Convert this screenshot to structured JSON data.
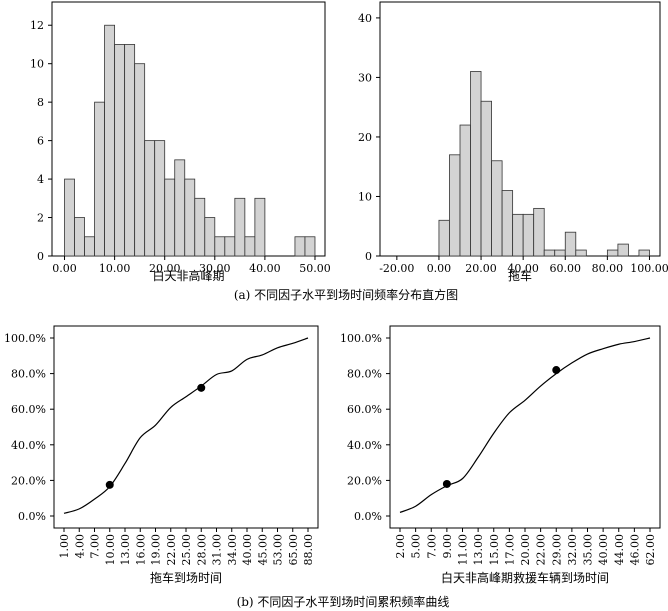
{
  "captions": {
    "a": "(a) 不同因子水平到场时间频率分布直方图",
    "b": "(b) 不同因子水平到场时间累积频率曲线"
  },
  "chart_data": [
    {
      "id": "hist-daytime",
      "type": "bar",
      "xlabel": "白天非高峰期",
      "ylabel": "",
      "title": "",
      "xlim": [
        -2.5,
        52
      ],
      "ylim": [
        0,
        13
      ],
      "xticks": [
        0,
        10,
        20,
        30,
        40,
        50
      ],
      "xtick_labels": [
        "0.00",
        "10.00",
        "20.00",
        "30.00",
        "40.00",
        "50.00"
      ],
      "yticks": [
        0,
        2,
        4,
        6,
        8,
        10,
        12
      ],
      "ytick_labels": [
        "0",
        "2",
        "4",
        "6",
        "8",
        "10",
        "12"
      ],
      "bin_width": 2,
      "bin_starts": [
        0,
        2,
        4,
        6,
        8,
        10,
        12,
        14,
        16,
        18,
        20,
        22,
        24,
        26,
        28,
        30,
        32,
        34,
        36,
        38,
        40,
        42,
        44,
        46,
        48
      ],
      "values": [
        4,
        2,
        1,
        8,
        12,
        11,
        11,
        10,
        6,
        6,
        4,
        5,
        4,
        3,
        2,
        1,
        1,
        3,
        1,
        3,
        0,
        0,
        0,
        1,
        1
      ],
      "grid": false
    },
    {
      "id": "hist-tow",
      "type": "bar",
      "xlabel": "拖车",
      "ylabel": "",
      "title": "",
      "xlim": [
        -28,
        105
      ],
      "ylim": [
        0,
        42
      ],
      "xticks": [
        -20,
        0,
        20,
        40,
        60,
        80,
        100
      ],
      "xtick_labels": [
        "-20.00",
        "0.00",
        "20.00",
        "40.00",
        "60.00",
        "80.00",
        "100.00"
      ],
      "yticks": [
        0,
        10,
        20,
        30,
        40
      ],
      "ytick_labels": [
        "0",
        "10",
        "20",
        "30",
        "40"
      ],
      "bin_width": 5,
      "bin_starts": [
        0,
        5,
        10,
        15,
        20,
        25,
        30,
        35,
        40,
        45,
        50,
        55,
        60,
        65,
        70,
        75,
        80,
        85,
        90,
        95
      ],
      "values": [
        6,
        17,
        22,
        31,
        26,
        16,
        11,
        7,
        7,
        8,
        1,
        1,
        4,
        1,
        0,
        0,
        1,
        2,
        0,
        1
      ],
      "grid": false
    },
    {
      "id": "cdf-tow",
      "type": "line",
      "xlabel": "拖车到场时间",
      "ylabel": "",
      "title": "",
      "x_categories": [
        "1.00",
        "4.00",
        "7.00",
        "10.00",
        "13.00",
        "16.00",
        "19.00",
        "22.00",
        "25.00",
        "28.00",
        "31.00",
        "34.00",
        "40.00",
        "45.00",
        "53.00",
        "65.00",
        "88.00"
      ],
      "y": [
        1.5,
        4.0,
        9.5,
        16.5,
        29.5,
        44.0,
        51.0,
        61.0,
        67.0,
        73.0,
        79.5,
        81.5,
        88.0,
        90.5,
        94.5,
        97.0,
        100.0
      ],
      "markers": [
        {
          "index": 3,
          "y": 17.5
        },
        {
          "index": 9,
          "y": 72.0
        }
      ],
      "ylim": [
        0,
        100
      ],
      "ytick_labels": [
        "0.0%",
        "20.0%",
        "40.0%",
        "60.0%",
        "80.0%",
        "100.0%"
      ],
      "grid": false
    },
    {
      "id": "cdf-rescue",
      "type": "line",
      "xlabel": "白天非高峰期救援车辆到场时间",
      "ylabel": "",
      "title": "",
      "x_categories": [
        "2.00",
        "5.00",
        "7.00",
        "9.00",
        "11.00",
        "13.00",
        "15.00",
        "17.00",
        "20.00",
        "22.00",
        "29.00",
        "32.00",
        "35.00",
        "40.00",
        "44.00",
        "46.00",
        "62.00"
      ],
      "y": [
        2.0,
        5.5,
        12.0,
        17.0,
        21.0,
        33.0,
        46.5,
        58.0,
        65.0,
        73.0,
        80.0,
        86.0,
        91.0,
        94.0,
        96.5,
        98.0,
        100.0
      ],
      "markers": [
        {
          "index": 3,
          "y": 18.0
        },
        {
          "index": 10,
          "y": 82.0
        }
      ],
      "ylim": [
        0,
        100
      ],
      "ytick_labels": [
        "0.0%",
        "20.0%",
        "40.0%",
        "60.0%",
        "80.0%",
        "100.0%"
      ],
      "grid": false
    }
  ]
}
